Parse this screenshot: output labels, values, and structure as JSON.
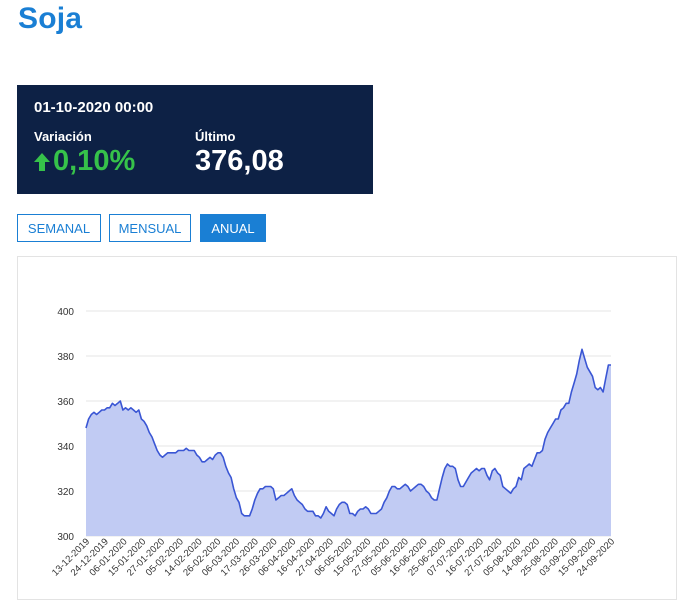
{
  "page": {
    "title": "Soja"
  },
  "quote": {
    "date": "01-10-2020 00:00",
    "change_label": "Variación",
    "change_value": "0,10%",
    "last_label": "Último",
    "last_value": "376,08",
    "colors": {
      "background": "#0d2145",
      "positive": "#36c24a"
    }
  },
  "range_buttons": [
    {
      "label": "SEMANAL",
      "active": false
    },
    {
      "label": "MENSUAL",
      "active": false
    },
    {
      "label": "ANUAL",
      "active": true
    }
  ],
  "chart_data": {
    "type": "area",
    "ylim": [
      300,
      400
    ],
    "yticks": [
      "300",
      "320",
      "340",
      "360",
      "380",
      "400"
    ],
    "xtick_labels": [
      "13-12-2019",
      "24-12-2019",
      "06-01-2020",
      "15-01-2020",
      "27-01-2020",
      "05-02-2020",
      "14-02-2020",
      "26-02-2020",
      "06-03-2020",
      "17-03-2020",
      "26-03-2020",
      "06-04-2020",
      "16-04-2020",
      "27-04-2020",
      "06-05-2020",
      "15-05-2020",
      "27-05-2020",
      "05-06-2020",
      "16-06-2020",
      "25-06-2020",
      "07-07-2020",
      "16-07-2020",
      "27-07-2020",
      "05-08-2020",
      "14-08-2020",
      "25-08-2020",
      "03-09-2020",
      "15-09-2020",
      "24-09-2020"
    ],
    "grid": true,
    "colors": {
      "line": "#3a56d4",
      "fill": "#c1cbf3"
    },
    "series": [
      {
        "values": [
          348,
          352,
          354,
          355,
          354,
          355,
          356,
          356,
          357,
          357,
          359,
          358,
          359,
          360,
          356,
          357,
          356,
          357,
          356,
          355,
          356,
          352,
          351,
          349,
          346,
          344,
          341,
          338,
          336,
          335,
          336,
          337,
          337,
          337,
          337,
          338,
          338,
          338,
          339,
          338,
          338,
          338,
          336,
          335,
          333,
          333,
          334,
          335,
          334,
          336,
          337,
          337,
          335,
          331,
          328,
          326,
          321,
          317,
          315,
          310,
          309,
          309,
          309,
          312,
          316,
          319,
          321,
          321,
          322,
          322,
          322,
          321,
          316,
          317,
          318,
          318,
          319,
          320,
          321,
          318,
          316,
          315,
          314,
          312,
          311,
          311,
          311,
          309,
          309,
          308,
          310,
          313,
          311,
          310,
          309,
          312,
          314,
          315,
          315,
          314,
          310,
          310,
          309,
          311,
          312,
          312,
          313,
          312,
          310,
          310,
          310,
          311,
          312,
          315,
          317,
          320,
          322,
          322,
          321,
          321,
          322,
          323,
          322,
          320,
          321,
          322,
          323,
          323,
          322,
          320,
          319,
          317,
          316,
          316,
          321,
          326,
          330,
          332,
          331,
          331,
          330,
          325,
          322,
          322,
          324,
          326,
          328,
          329,
          330,
          329,
          330,
          330,
          327,
          325,
          329,
          330,
          328,
          327,
          322,
          321,
          320,
          319,
          321,
          322,
          326,
          325,
          330,
          331,
          332,
          331,
          334,
          337,
          337,
          338,
          343,
          346,
          348,
          350,
          352,
          352,
          356,
          357,
          359,
          359,
          364,
          368,
          372,
          378,
          383,
          379,
          375,
          373,
          371,
          366,
          365,
          366,
          364,
          370,
          376,
          376
        ]
      }
    ]
  }
}
